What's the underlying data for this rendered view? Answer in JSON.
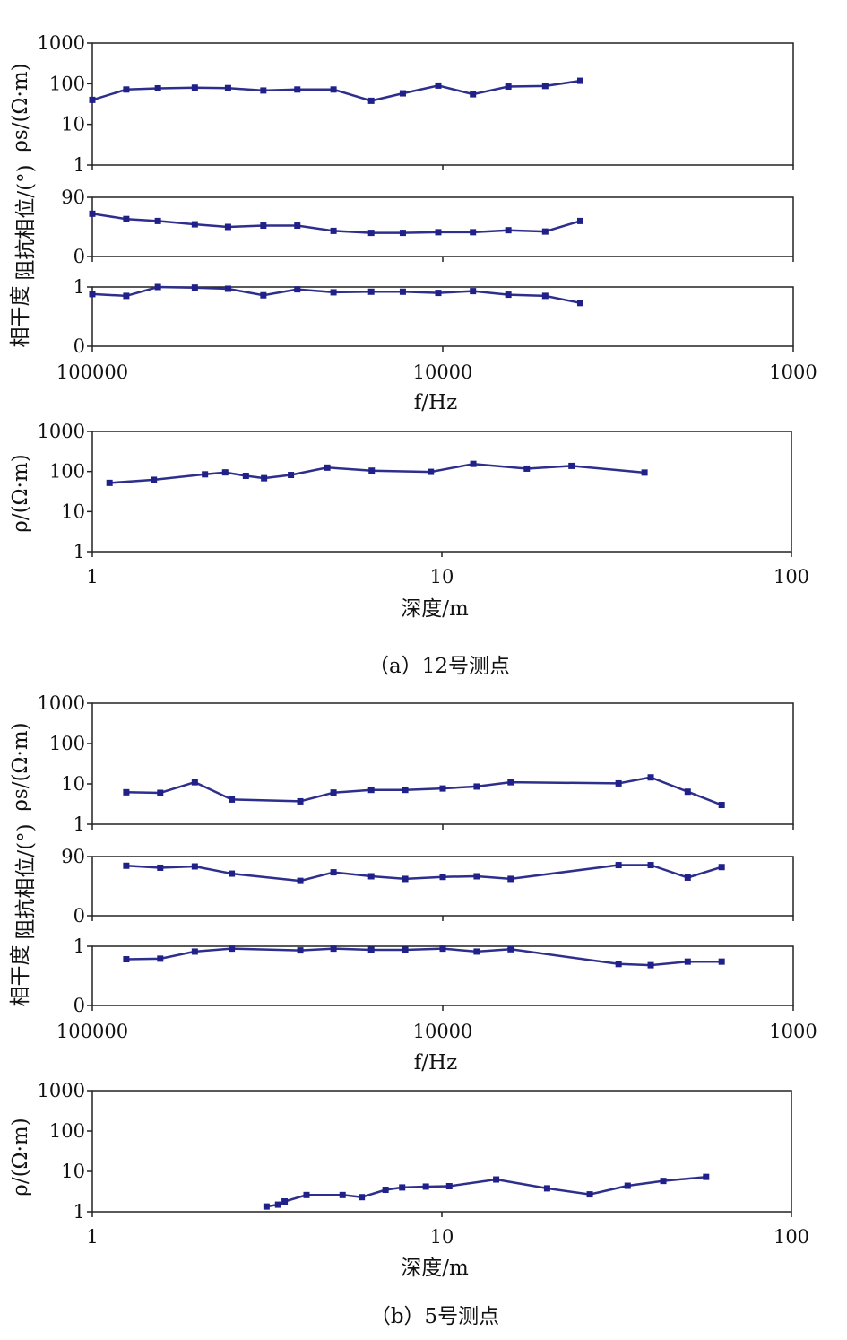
{
  "figure": {
    "caption_a": "（a）12号测点",
    "caption_b": "（b）5号测点"
  },
  "colors": {
    "series": "#2e2e8c",
    "marker": "#20208a",
    "axes": "#222222"
  },
  "chart_data": [
    {
      "type": "line",
      "panel": "a-rho-s",
      "ylabel": "ρs/(Ω·m)",
      "xscale": "log",
      "xreversed": true,
      "xlim": [
        100000,
        1000
      ],
      "yscale": "log",
      "ylim": [
        1,
        1000
      ],
      "yticks": [
        "1",
        "10",
        "100",
        "1000"
      ],
      "x": [
        100000,
        80000,
        65000,
        51000,
        41000,
        32500,
        26000,
        20500,
        16000,
        13000,
        10300,
        8200,
        6500,
        5100,
        4050
      ],
      "values": [
        40,
        72,
        77,
        80,
        78,
        68,
        72,
        72,
        38,
        58,
        90,
        55,
        85,
        88,
        118
      ]
    },
    {
      "type": "line",
      "panel": "a-phase",
      "ylabel": "阻抗相位/(°)",
      "xscale": "log",
      "xreversed": true,
      "xlim": [
        100000,
        1000
      ],
      "ylim": [
        0,
        90
      ],
      "yticks": [
        "0",
        "90"
      ],
      "x": [
        100000,
        80000,
        65000,
        51000,
        41000,
        32500,
        26000,
        20500,
        16000,
        13000,
        10300,
        8200,
        6500,
        5100,
        4050
      ],
      "values": [
        65,
        57,
        54,
        49,
        45,
        47,
        47,
        39,
        36,
        36,
        37,
        37,
        40,
        38,
        54
      ]
    },
    {
      "type": "line",
      "panel": "a-coherence",
      "ylabel": "相干度",
      "xscale": "log",
      "xreversed": true,
      "xlim": [
        100000,
        1000
      ],
      "ylim": [
        0,
        1
      ],
      "yticks": [
        "0",
        "1"
      ],
      "x": [
        100000,
        80000,
        65000,
        51000,
        41000,
        32500,
        26000,
        20500,
        16000,
        13000,
        10300,
        8200,
        6500,
        5100,
        4050
      ],
      "values": [
        0.88,
        0.85,
        1.0,
        0.99,
        0.97,
        0.86,
        0.96,
        0.91,
        0.92,
        0.92,
        0.9,
        0.93,
        0.87,
        0.85,
        0.73
      ],
      "xticks": [
        "100000",
        "10000",
        "1000"
      ],
      "xlabel": "f/Hz"
    },
    {
      "type": "line",
      "panel": "a-rho-depth",
      "ylabel": "ρ/(Ω·m)",
      "xlabel": "深度/m",
      "xscale": "log",
      "xlim": [
        1,
        100
      ],
      "xticks": [
        "1",
        "10",
        "100"
      ],
      "yscale": "log",
      "ylim": [
        1,
        1000
      ],
      "yticks": [
        "1",
        "10",
        "100",
        "1000"
      ],
      "x": [
        1.12,
        1.5,
        2.1,
        2.4,
        2.75,
        3.1,
        3.7,
        4.7,
        6.3,
        9.3,
        12.3,
        17.5,
        23.5,
        38
      ],
      "values": [
        52,
        62,
        85,
        95,
        78,
        68,
        82,
        125,
        105,
        98,
        155,
        118,
        138,
        94
      ]
    },
    {
      "type": "line",
      "panel": "b-rho-s",
      "ylabel": "ρs/(Ω·m)",
      "xscale": "log",
      "xreversed": true,
      "xlim": [
        100000,
        1000
      ],
      "yscale": "log",
      "ylim": [
        1,
        1000
      ],
      "yticks": [
        "1",
        "10",
        "100",
        "1000"
      ],
      "x": [
        80000,
        64000,
        51000,
        40000,
        25500,
        20500,
        16000,
        12800,
        10000,
        8000,
        6400,
        3150,
        2550,
        2000,
        1600
      ],
      "values": [
        6.2,
        6.0,
        11,
        4.1,
        3.7,
        6.1,
        7.1,
        7.1,
        7.7,
        8.6,
        11,
        10.3,
        14.5,
        6.4,
        3.0
      ]
    },
    {
      "type": "line",
      "panel": "b-phase",
      "ylabel": "阻抗相位/(°)",
      "xscale": "log",
      "xreversed": true,
      "xlim": [
        100000,
        1000
      ],
      "ylim": [
        0,
        90
      ],
      "yticks": [
        "0",
        "90"
      ],
      "x": [
        80000,
        64000,
        51000,
        40000,
        25500,
        20500,
        16000,
        12800,
        10000,
        8000,
        6400,
        3150,
        2550,
        2000,
        1600
      ],
      "values": [
        76,
        73,
        75,
        64,
        53,
        66,
        60,
        56,
        59,
        60,
        56,
        77,
        77,
        58,
        74
      ]
    },
    {
      "type": "line",
      "panel": "b-coherence",
      "ylabel": "相干度",
      "xscale": "log",
      "xreversed": true,
      "xlim": [
        100000,
        1000
      ],
      "ylim": [
        0,
        1
      ],
      "yticks": [
        "0",
        "1"
      ],
      "x": [
        80000,
        64000,
        51000,
        40000,
        25500,
        20500,
        16000,
        12800,
        10000,
        8000,
        6400,
        3150,
        2550,
        2000,
        1600
      ],
      "values": [
        0.78,
        0.79,
        0.91,
        0.96,
        0.93,
        0.96,
        0.94,
        0.94,
        0.96,
        0.91,
        0.95,
        0.7,
        0.68,
        0.74,
        0.74
      ],
      "xticks": [
        "100000",
        "10000",
        "1000"
      ],
      "xlabel": "f/Hz"
    },
    {
      "type": "line",
      "panel": "b-rho-depth",
      "ylabel": "ρ/(Ω·m)",
      "xlabel": "深度/m",
      "xscale": "log",
      "xlim": [
        1,
        100
      ],
      "xticks": [
        "1",
        "10",
        "100"
      ],
      "yscale": "log",
      "ylim": [
        1,
        1000
      ],
      "yticks": [
        "1",
        "10",
        "100",
        "1000"
      ],
      "x": [
        3.15,
        3.4,
        3.55,
        4.1,
        5.2,
        5.9,
        6.9,
        7.7,
        9.0,
        10.5,
        14.3,
        20,
        26.5,
        34,
        43,
        57
      ],
      "values": [
        1.35,
        1.5,
        1.8,
        2.6,
        2.6,
        2.3,
        3.5,
        4.0,
        4.2,
        4.3,
        6.3,
        3.8,
        2.7,
        4.4,
        5.8,
        7.3
      ]
    }
  ]
}
